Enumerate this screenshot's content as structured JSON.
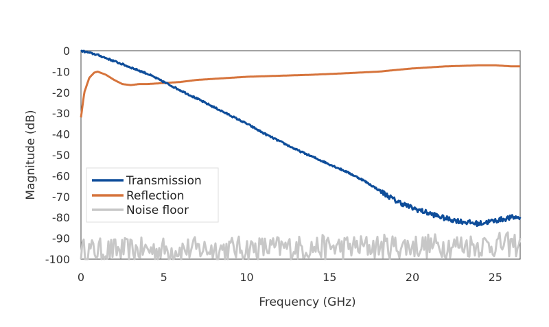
{
  "chart_data": {
    "type": "line",
    "title": "",
    "xlabel": "Frequency (GHz)",
    "ylabel": "Magnitude  (dB)",
    "xlim": [
      0,
      26.5
    ],
    "ylim": [
      -100,
      0
    ],
    "xticks": [
      0,
      5,
      10,
      15,
      20,
      25
    ],
    "yticks": [
      0,
      -10,
      -20,
      -30,
      -40,
      -50,
      -60,
      -70,
      -80,
      -90,
      -100
    ],
    "grid": false,
    "legend_position": "lower-left",
    "series": [
      {
        "name": "Transmission",
        "color": "#0e4d9a",
        "noise": 0.4,
        "x": [
          0,
          1,
          2,
          3,
          4,
          5,
          6,
          7,
          8,
          9,
          10,
          11,
          12,
          13,
          14,
          15,
          16,
          17,
          18,
          19,
          20,
          21,
          22,
          23,
          24,
          25,
          26,
          26.5
        ],
        "y": [
          0,
          -2,
          -5,
          -8,
          -11,
          -15,
          -19,
          -23,
          -27,
          -31,
          -35,
          -39.5,
          -43.5,
          -47.5,
          -51,
          -54.5,
          -58,
          -62,
          -67,
          -72,
          -75.5,
          -78,
          -80.5,
          -82,
          -83,
          -81.5,
          -80,
          -80
        ]
      },
      {
        "name": "Reflection",
        "color": "#d6743c",
        "noise": 0,
        "x": [
          0,
          0.2,
          0.5,
          0.8,
          1,
          1.5,
          2,
          2.5,
          3,
          3.5,
          4,
          5,
          6,
          7,
          8,
          9,
          10,
          12,
          14,
          16,
          18,
          20,
          22,
          24,
          25,
          26,
          26.5
        ],
        "y": [
          -32,
          -20,
          -13,
          -10.5,
          -10,
          -11.5,
          -14,
          -16,
          -16.5,
          -16,
          -16,
          -15.5,
          -15,
          -14,
          -13.5,
          -13,
          -12.5,
          -12,
          -11.5,
          -10.8,
          -10,
          -8.5,
          -7.5,
          -7,
          -7,
          -7.5,
          -7.5
        ]
      },
      {
        "name": "Noise floor",
        "color": "#c7c7c7",
        "noise": 6,
        "x": [
          0,
          26.5
        ],
        "y": [
          -96,
          -93
        ]
      }
    ]
  }
}
